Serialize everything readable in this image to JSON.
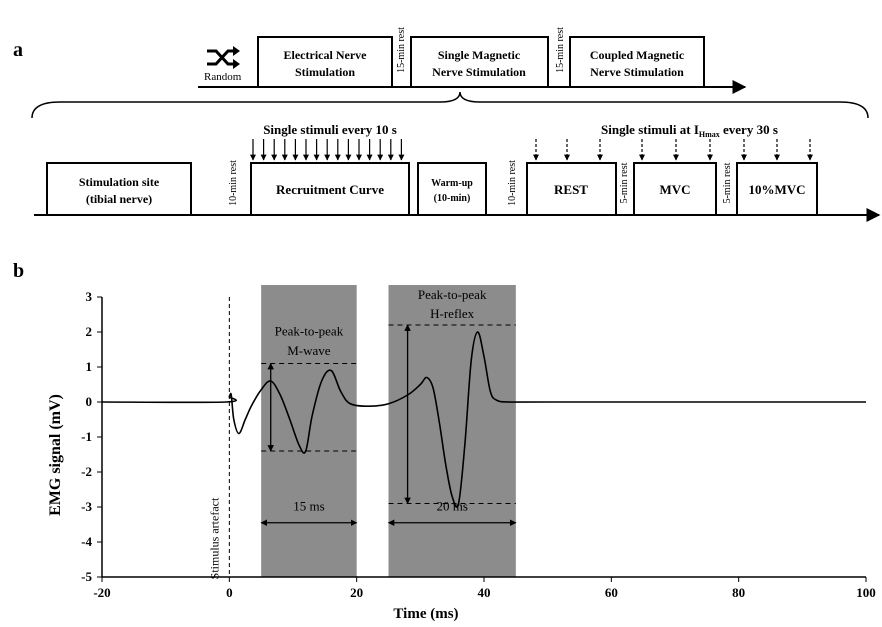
{
  "panel_a": {
    "label": "a",
    "random_label": "Random",
    "session_boxes": [
      [
        "Electrical Nerve",
        "Stimulation"
      ],
      [
        "Single Magnetic",
        "Nerve Stimulation"
      ],
      [
        "Coupled Magnetic",
        "Nerve Stimulation"
      ]
    ],
    "session_rests": [
      "15-min rest",
      "15-min rest"
    ],
    "protocol_boxes": [
      [
        "Stimulation site",
        "(tibial nerve)"
      ],
      [
        "Recruitment Curve"
      ],
      [
        "Warm-up",
        "(10-min)"
      ],
      [
        "REST"
      ],
      [
        "MVC"
      ],
      [
        "10%MVC"
      ]
    ],
    "protocol_rests": [
      "10-min rest",
      "10-min rest",
      "5-min rest",
      "5-min rest"
    ],
    "single_stimuli_left": "Single stimuli every 10 s",
    "single_stimuli_right_prefix": "Single stimuli at I",
    "single_stimuli_right_sub": "Hmax",
    "single_stimuli_right_suffix": " every 30 s"
  },
  "panel_b": {
    "label": "b",
    "ylabel": "EMG signal (mV)",
    "xlabel": "Time (ms)",
    "stimulus_label": "Stimulus artefact",
    "mwave_label": [
      "Peak-to-peak",
      "M-wave"
    ],
    "hreflex_label": [
      "Peak-to-peak",
      "H-reflex"
    ],
    "window1_label": "15 ms",
    "window2_label": "20 ms"
  },
  "chart_data": {
    "type": "line",
    "xlabel": "Time (ms)",
    "ylabel": "EMG signal (mV)",
    "xlim": [
      -20,
      100
    ],
    "ylim": [
      -5,
      3
    ],
    "x_ticks": [
      -20,
      0,
      20,
      40,
      60,
      80,
      100
    ],
    "y_ticks": [
      3,
      2,
      1,
      0,
      -1,
      -2,
      -3,
      -4,
      -5
    ],
    "grid": false,
    "shaded_windows": [
      {
        "x0": 5,
        "x1": 20,
        "label": "15 ms"
      },
      {
        "x0": 25,
        "x1": 45,
        "label": "20 ms"
      }
    ],
    "series": [
      {
        "x": [
          -20,
          -0.5,
          0,
          0.3,
          0.7,
          1.5,
          2.5,
          3.5,
          5,
          6.5,
          8,
          9.5,
          11,
          12,
          13,
          14.5,
          16,
          17.5,
          19,
          22,
          25,
          28,
          30,
          31,
          32,
          33,
          34,
          35,
          36,
          37,
          38,
          39,
          40,
          41,
          42,
          44,
          50,
          100
        ],
        "y": [
          0,
          0,
          0.15,
          0.2,
          -0.5,
          -0.9,
          -0.5,
          -0.1,
          0.35,
          0.6,
          0.2,
          -0.5,
          -1.25,
          -1.4,
          -0.4,
          0.6,
          0.9,
          0.3,
          -0.05,
          -0.12,
          -0.05,
          0.2,
          0.5,
          0.7,
          0.4,
          -0.6,
          -1.8,
          -2.7,
          -2.9,
          -1.2,
          1.2,
          2.0,
          1.3,
          0.3,
          0.05,
          0,
          0,
          0
        ]
      }
    ],
    "reference_lines": {
      "mwave_top": 1.1,
      "mwave_bottom": -1.4,
      "hreflex_top": 2.2,
      "hreflex_bottom": -2.9
    }
  }
}
